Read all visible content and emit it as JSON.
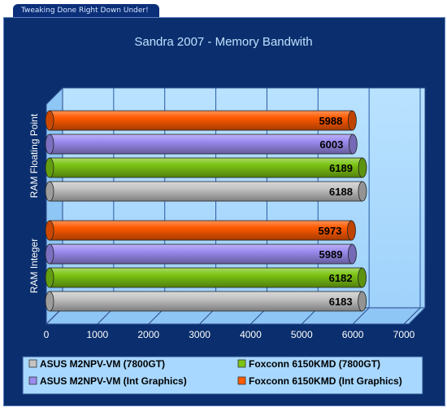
{
  "header": {
    "tab_text": "Tweaking Done Right Down Under!"
  },
  "chart_data": {
    "type": "bar",
    "orientation": "horizontal",
    "title": "Sandra 2007 - Memory Bandwith",
    "categories": [
      "RAM Floating Point",
      "RAM Integer"
    ],
    "series": [
      {
        "name": "Foxconn 6150KMD (Int Graphics)",
        "color": "#ff5a00",
        "values": [
          5988,
          5973
        ]
      },
      {
        "name": "ASUS M2NPV-VM (Int Graphics)",
        "color": "#9b8cf0",
        "values": [
          6003,
          5989
        ]
      },
      {
        "name": "Foxconn 6150KMD (7800GT)",
        "color": "#7cc414",
        "values": [
          6189,
          6182
        ]
      },
      {
        "name": "ASUS M2NPV-VM (7800GT)",
        "color": "#c4c4c4",
        "values": [
          6188,
          6183
        ]
      }
    ],
    "xticks": [
      "0",
      "1000",
      "2000",
      "3000",
      "4000",
      "5000",
      "6000",
      "7000"
    ],
    "xlim": [
      0,
      7000
    ],
    "grid": true,
    "legend": [
      {
        "name": "ASUS M2NPV-VM (7800GT)",
        "color": "#c4c4c4"
      },
      {
        "name": "Foxconn 6150KMD (7800GT)",
        "color": "#7cc414"
      },
      {
        "name": "ASUS M2NPV-VM (Int Graphics)",
        "color": "#9b8cf0"
      },
      {
        "name": "Foxconn 6150KMD (Int Graphics)",
        "color": "#ff5a00"
      }
    ],
    "legend_position": "bottom",
    "plot_background": "#a8d8ff",
    "frame_background": "#0b2f6e"
  }
}
